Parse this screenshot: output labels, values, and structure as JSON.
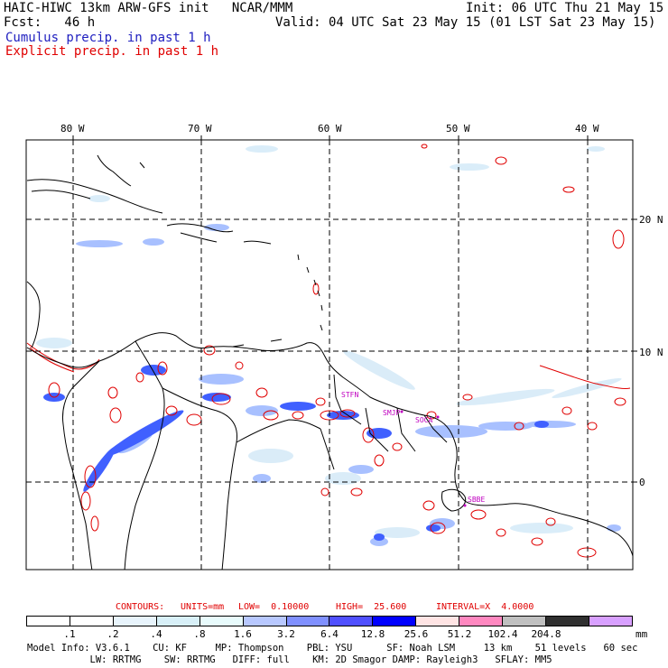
{
  "header": {
    "title": "HAIC-HIWC 13km ARW-GFS init   NCAR/MMM",
    "fcst": "Fcst:   46 h",
    "init": "Init: 06 UTC Thu 21 May 15",
    "valid": "Valid: 04 UTC Sat 23 May 15 (01 LST Sat 23 May 15)",
    "cumulus": "Cumulus precip. in past 1 h",
    "explicit": "Explicit precip. in past 1 h"
  },
  "map": {
    "longitudes": [
      "80 W",
      "70 W",
      "60 W",
      "50 W",
      "40 W"
    ],
    "latitudes": [
      "20 N",
      "10 N",
      "0"
    ],
    "stations": [
      "STFN",
      "SMJP",
      "SOCA",
      "SBBE"
    ],
    "colors": {
      "cumulus": "#3b5bff",
      "explicit": "#e00000",
      "station": "#c000c0"
    }
  },
  "contours": {
    "prefix": "CONTOURS:",
    "units": "UNITS=mm",
    "low": "LOW=  0.10000",
    "high": "HIGH=  25.600",
    "interval": "INTERVAL=X  4.0000"
  },
  "colorbar": {
    "unit": "mm",
    "labels": [
      ".1",
      ".2",
      ".4",
      ".8",
      "1.6",
      "3.2",
      "6.4",
      "12.8",
      "25.6",
      "51.2",
      "102.4",
      "204.8"
    ],
    "colors": [
      "#ffffff",
      "#ffffff",
      "#e8f4fc",
      "#d8f0f8",
      "#e8fbfc",
      "#b8c8ff",
      "#8090ff",
      "#5050ff",
      "#0000ff",
      "#ffe4e4",
      "#ff88c0",
      "#c0c0c0",
      "#303030",
      "#d8a0ff"
    ]
  },
  "model_info": {
    "line1": "Model Info: V3.6.1    CU: KF     MP: Thompson    PBL: YSU      SF: Noah LSM     13 km    51 levels   60 sec",
    "line2": "           LW: RRTMG    SW: RRTMG   DIFF: full    KM: 2D Smagor DAMP: Rayleigh3   SFLAY: MM5"
  }
}
